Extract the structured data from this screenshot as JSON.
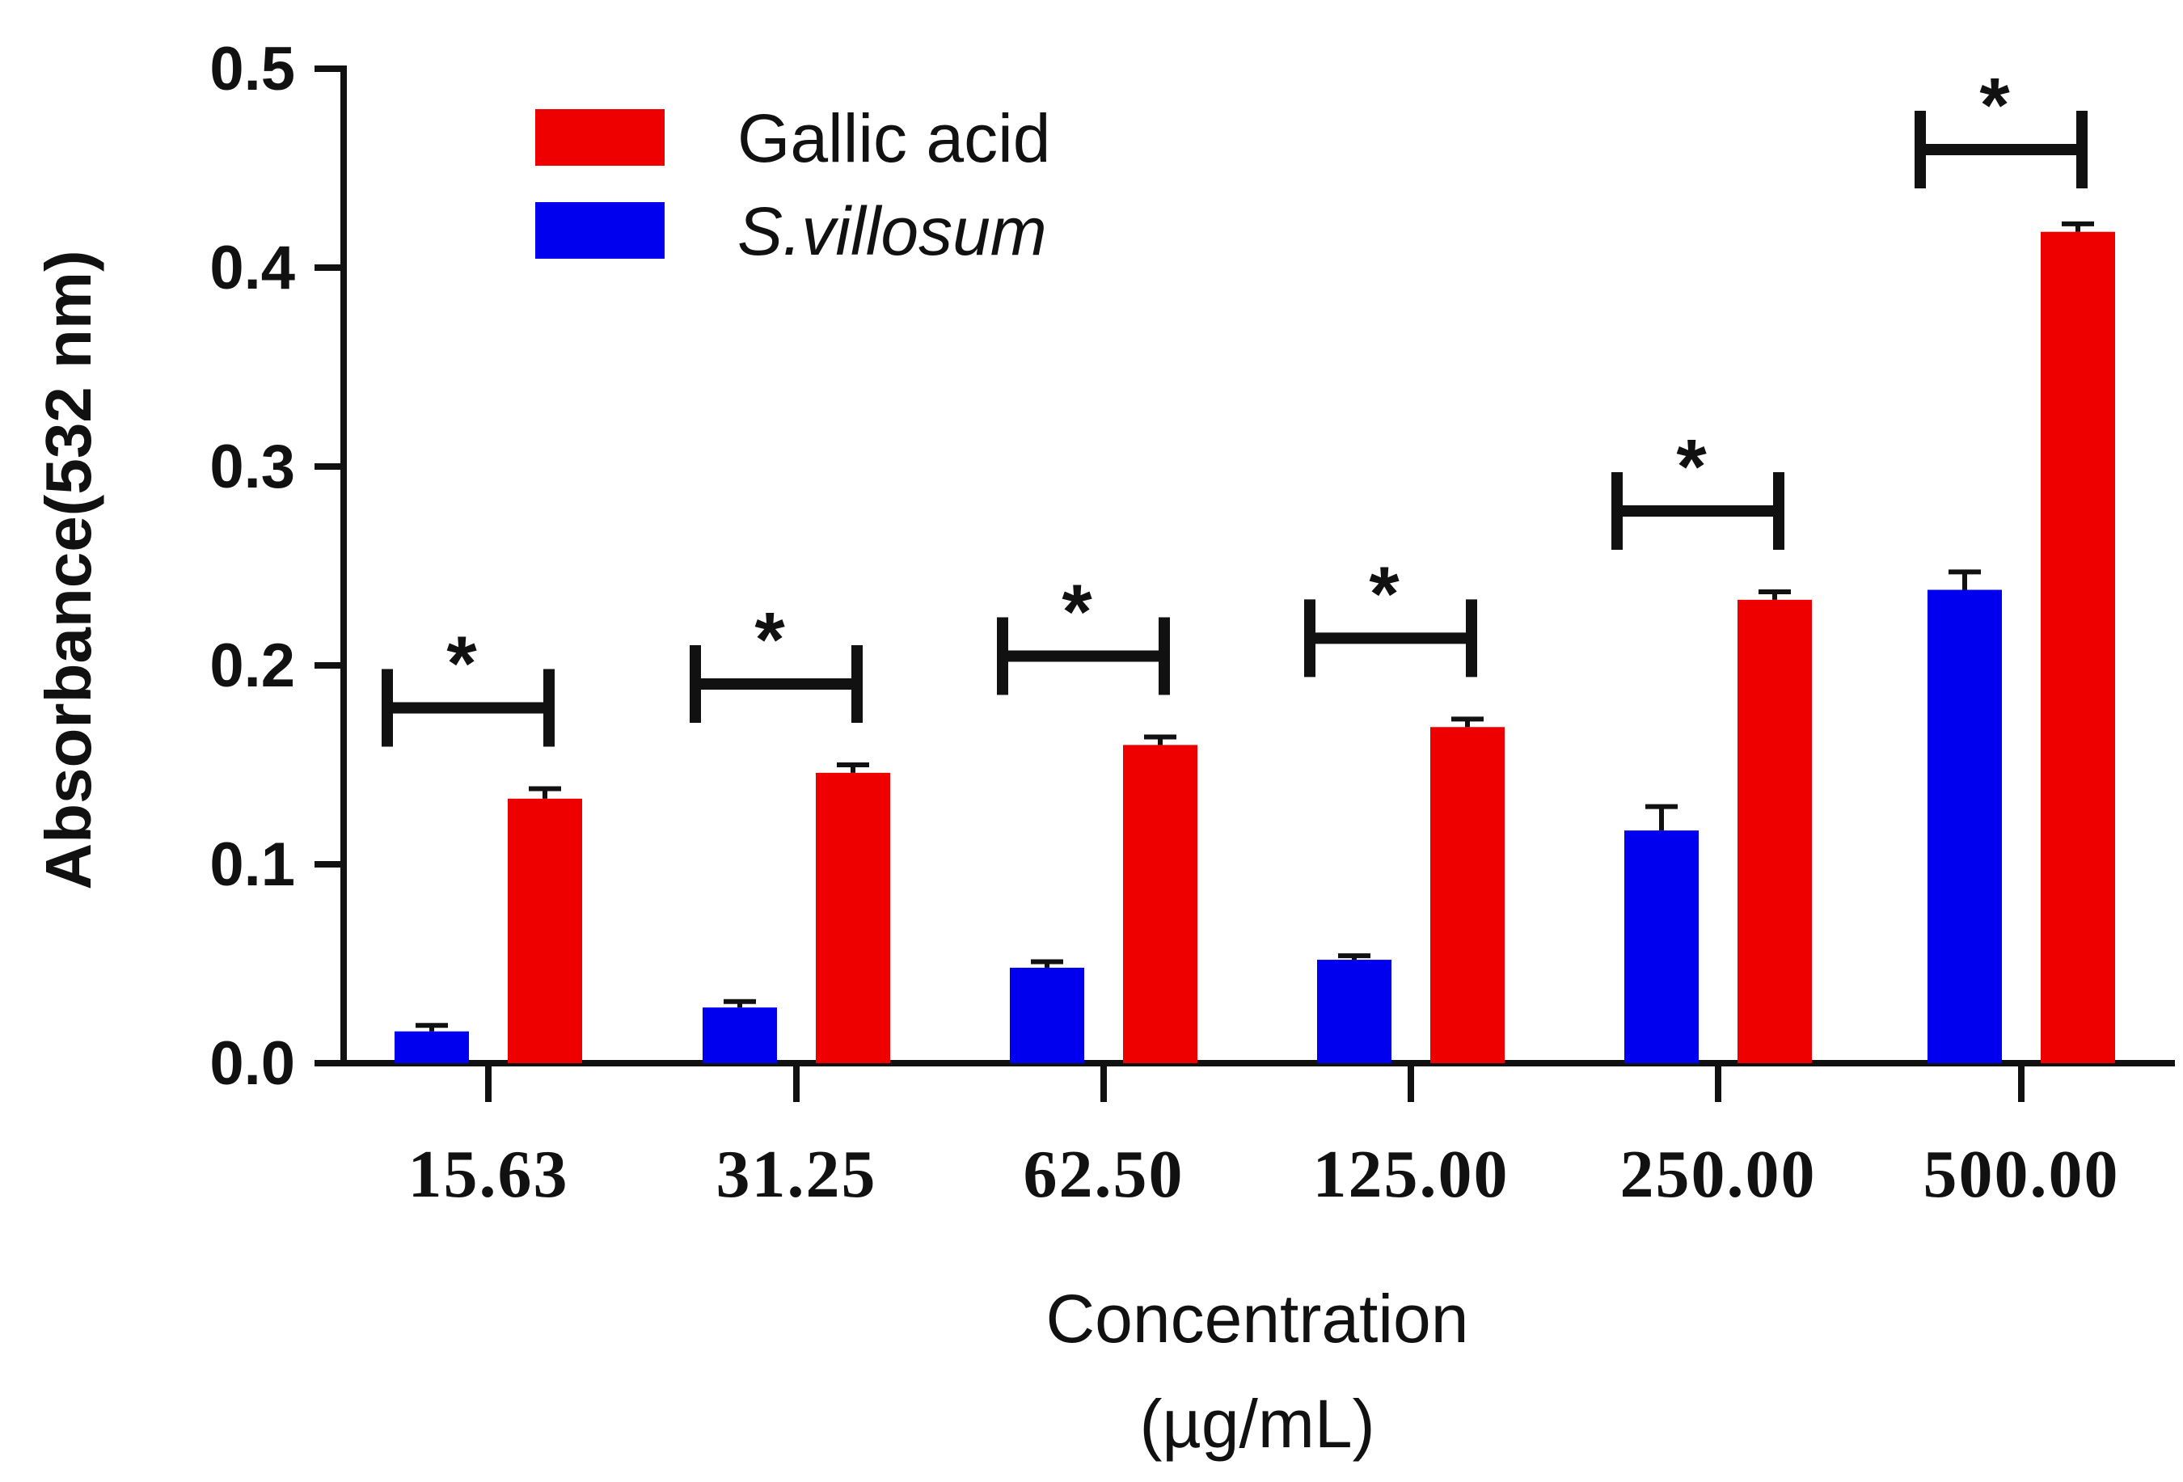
{
  "chart_data": {
    "type": "bar",
    "title": "",
    "ylabel": "Absorbance(532 nm)",
    "xlabel_line1": "Concentration",
    "xlabel_line2": "(µg/mL)",
    "ylim": [
      0,
      0.5
    ],
    "yticks": [
      "0.0",
      "0.1",
      "0.2",
      "0.3",
      "0.4",
      "0.5"
    ],
    "categories": [
      "15.63",
      "31.25",
      "62.50",
      "125.00",
      "250.00",
      "500.00"
    ],
    "legend_position": "top-left",
    "series": [
      {
        "name": "S.villosum",
        "italic": true,
        "color": "#0000ee",
        "values": [
          0.016,
          0.028,
          0.048,
          0.052,
          0.117,
          0.238
        ],
        "errors": [
          0.003,
          0.003,
          0.003,
          0.002,
          0.012,
          0.009
        ]
      },
      {
        "name": "Gallic acid",
        "italic": false,
        "color": "#ee0000",
        "values": [
          0.133,
          0.146,
          0.16,
          0.169,
          0.233,
          0.418
        ],
        "errors": [
          0.005,
          0.004,
          0.004,
          0.004,
          0.004,
          0.004
        ]
      }
    ],
    "significance": {
      "marker": "*",
      "categories": [
        0,
        1,
        2,
        3,
        4,
        5
      ]
    },
    "grid": false
  }
}
